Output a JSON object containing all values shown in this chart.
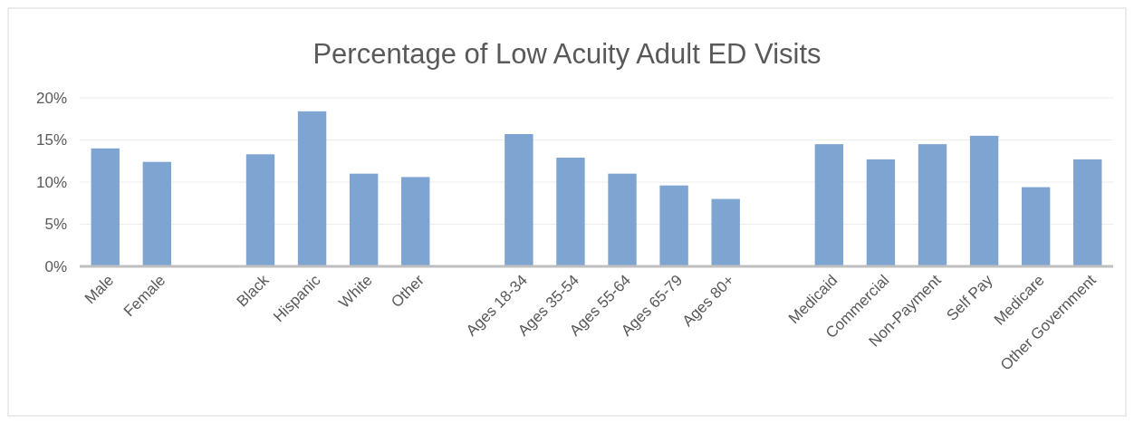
{
  "chart_data": {
    "type": "bar",
    "title": "Percentage of Low Acuity Adult ED Visits",
    "categories": [
      "Male",
      "Female",
      null,
      "Black",
      "Hispanic",
      "White",
      "Other",
      null,
      "Ages 18-34",
      "Ages 35-54",
      "Ages 55-64",
      "Ages 65-79",
      "Ages 80+",
      null,
      "Medicaid",
      "Commercial",
      "Non-Payment",
      "Self Pay",
      "Medicare",
      "Other Government"
    ],
    "values": [
      14.0,
      12.4,
      null,
      13.3,
      18.4,
      11.0,
      10.6,
      null,
      15.7,
      12.9,
      11.0,
      9.6,
      8.0,
      null,
      14.5,
      12.7,
      14.5,
      15.5,
      9.4,
      12.7
    ],
    "color": "#7ea4d1",
    "ylim": [
      0,
      20
    ],
    "yticks": [
      {
        "value": 0,
        "label": "0%"
      },
      {
        "value": 5,
        "label": "5%"
      },
      {
        "value": 10,
        "label": "10%"
      },
      {
        "value": 15,
        "label": "15%"
      },
      {
        "value": 20,
        "label": "20%"
      }
    ],
    "grid": "y"
  }
}
